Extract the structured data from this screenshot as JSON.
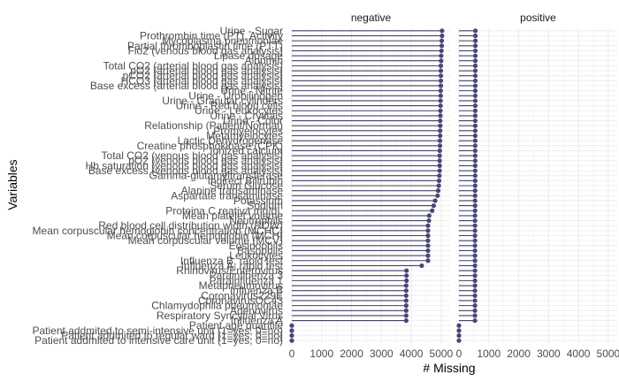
{
  "chart_data": {
    "type": "lollipop",
    "xlabel": "# Missing",
    "ylabel": "Variables",
    "facets": [
      "negative",
      "positive"
    ],
    "x_ticks": [
      0,
      1000,
      2000,
      3000,
      4000,
      5000
    ],
    "xlim": [
      0,
      5300
    ],
    "grid": true,
    "colors": {
      "line": "#3f3f75",
      "point": "#46467a",
      "grid": "#ebebeb",
      "text": "#4d4d4d"
    },
    "variables": [
      {
        "label": "Urine - Sugar",
        "negative": 5030,
        "positive": 550
      },
      {
        "label": "Prothrombin time (PT), Activity",
        "negative": 5030,
        "positive": 550
      },
      {
        "label": "Mycoplasma pneumoniae",
        "negative": 5020,
        "positive": 550
      },
      {
        "label": "Partial thromboplastin time (PTT)",
        "negative": 5020,
        "positive": 550
      },
      {
        "label": "Fio2 (venous blood gas analysis)",
        "negative": 5010,
        "positive": 549
      },
      {
        "label": "Lipase dosage",
        "negative": 5000,
        "positive": 549
      },
      {
        "label": "Albumin",
        "negative": 5000,
        "positive": 549
      },
      {
        "label": "Total CO2 (arterial blood gas analysis)",
        "negative": 4990,
        "positive": 548
      },
      {
        "label": "pO2 (arterial blood gas analysis)",
        "negative": 4990,
        "positive": 548
      },
      {
        "label": "pCO2 (arterial blood gas analysis)",
        "negative": 4990,
        "positive": 548
      },
      {
        "label": "HCO3 (arterial blood gas analysis)",
        "negative": 4990,
        "positive": 548
      },
      {
        "label": "Base excess (arterial blood gas analysis)",
        "negative": 4990,
        "positive": 548
      },
      {
        "label": "Urine - Nitrite",
        "negative": 4985,
        "positive": 547
      },
      {
        "label": "Urine - Urobilinogen",
        "negative": 4985,
        "positive": 547
      },
      {
        "label": "Urine - Granular cylinders",
        "negative": 4980,
        "positive": 547
      },
      {
        "label": "Urine - Red blood cells",
        "negative": 4980,
        "positive": 547
      },
      {
        "label": "Urine - Leukocytes",
        "negative": 4975,
        "positive": 546
      },
      {
        "label": "Urine - Crystals",
        "negative": 4975,
        "positive": 546
      },
      {
        "label": "Urine - Color",
        "negative": 4970,
        "positive": 546
      },
      {
        "label": "Relationship (Patient/Normal)",
        "negative": 4970,
        "positive": 545
      },
      {
        "label": "Promyelocytes",
        "negative": 4965,
        "positive": 545
      },
      {
        "label": "Metamyelocytes",
        "negative": 4965,
        "positive": 545
      },
      {
        "label": "Lactic Dehydrogenase",
        "negative": 4960,
        "positive": 545
      },
      {
        "label": "Creatine phosphokinase (CPK)",
        "negative": 4960,
        "positive": 544
      },
      {
        "label": "Ionized calcium",
        "negative": 4955,
        "positive": 544
      },
      {
        "label": "Total CO2 (venous blood gas analysis)",
        "negative": 4950,
        "positive": 544
      },
      {
        "label": "pO2 (venous blood gas analysis)",
        "negative": 4950,
        "positive": 544
      },
      {
        "label": "Hb saturation (venous blood gas analysis)",
        "negative": 4950,
        "positive": 544
      },
      {
        "label": "Base excess (venous blood gas analysis)",
        "negative": 4950,
        "positive": 544
      },
      {
        "label": "Gamma-glutamyltransferase",
        "negative": 4940,
        "positive": 543
      },
      {
        "label": "Indirect Bilirubin",
        "negative": 4930,
        "positive": 543
      },
      {
        "label": "Serum Glucose",
        "negative": 4920,
        "positive": 542
      },
      {
        "label": "Alanine transaminase",
        "negative": 4900,
        "positive": 542
      },
      {
        "label": "Aspartate transaminase",
        "negative": 4880,
        "positive": 541
      },
      {
        "label": "Potassium",
        "negative": 4800,
        "positive": 540
      },
      {
        "label": "Sodium",
        "negative": 4750,
        "positive": 540
      },
      {
        "label": "Proteina C reativa mg/dL",
        "negative": 4700,
        "positive": 539
      },
      {
        "label": "Mean platelet volume",
        "negative": 4600,
        "positive": 538
      },
      {
        "label": "Neutrophils",
        "negative": 4590,
        "positive": 538
      },
      {
        "label": "Red blood cell distribution width (RDW)",
        "negative": 4560,
        "positive": 537
      },
      {
        "label": "Mean corpuscular hemoglobin concentration (MCHC)",
        "negative": 4560,
        "positive": 537
      },
      {
        "label": "Mean corpuscular hemoglobin (MCH)",
        "negative": 4560,
        "positive": 537
      },
      {
        "label": "Mean corpuscular volume (MCV)",
        "negative": 4560,
        "positive": 537
      },
      {
        "label": "Eosinophils",
        "negative": 4560,
        "positive": 537
      },
      {
        "label": "Basophils",
        "negative": 4560,
        "positive": 537
      },
      {
        "label": "Leukocytes",
        "negative": 4560,
        "positive": 537
      },
      {
        "label": "Influenza B, rapid test",
        "negative": 4560,
        "positive": 537
      },
      {
        "label": "Influenza A, rapid test",
        "negative": 4350,
        "positive": 537
      },
      {
        "label": "Rhinovirus/Enterovirus",
        "negative": 3840,
        "positive": 537
      },
      {
        "label": "Parainfluenza 3",
        "negative": 3840,
        "positive": 537
      },
      {
        "label": "Parainfluenza 1",
        "negative": 3840,
        "positive": 536
      },
      {
        "label": "Metapneumovirus",
        "negative": 3830,
        "positive": 536
      },
      {
        "label": "Influenza B",
        "negative": 3830,
        "positive": 536
      },
      {
        "label": "Coronavirus229E",
        "negative": 3830,
        "positive": 536
      },
      {
        "label": "CoronavirusOC43",
        "negative": 3830,
        "positive": 536
      },
      {
        "label": "Chlamydophila pneumoniae",
        "negative": 3830,
        "positive": 536
      },
      {
        "label": "Adenovirus",
        "negative": 3830,
        "positive": 536
      },
      {
        "label": "Respiratory Syncytial Virus",
        "negative": 3830,
        "positive": 536
      },
      {
        "label": "Influenza A",
        "negative": 3830,
        "positive": 536
      },
      {
        "label": "Patient age quantile",
        "negative": 0,
        "positive": 0
      },
      {
        "label": "Patient addmited to semi-intensive unit (1=yes, 0=no)",
        "negative": 0,
        "positive": 0
      },
      {
        "label": "Patient addmited to regular ward (1=yes, 0=no)",
        "negative": 0,
        "positive": 0
      },
      {
        "label": "Patient addmited to intensive care unit (1=yes, 0=no)",
        "negative": 0,
        "positive": 0
      }
    ]
  }
}
